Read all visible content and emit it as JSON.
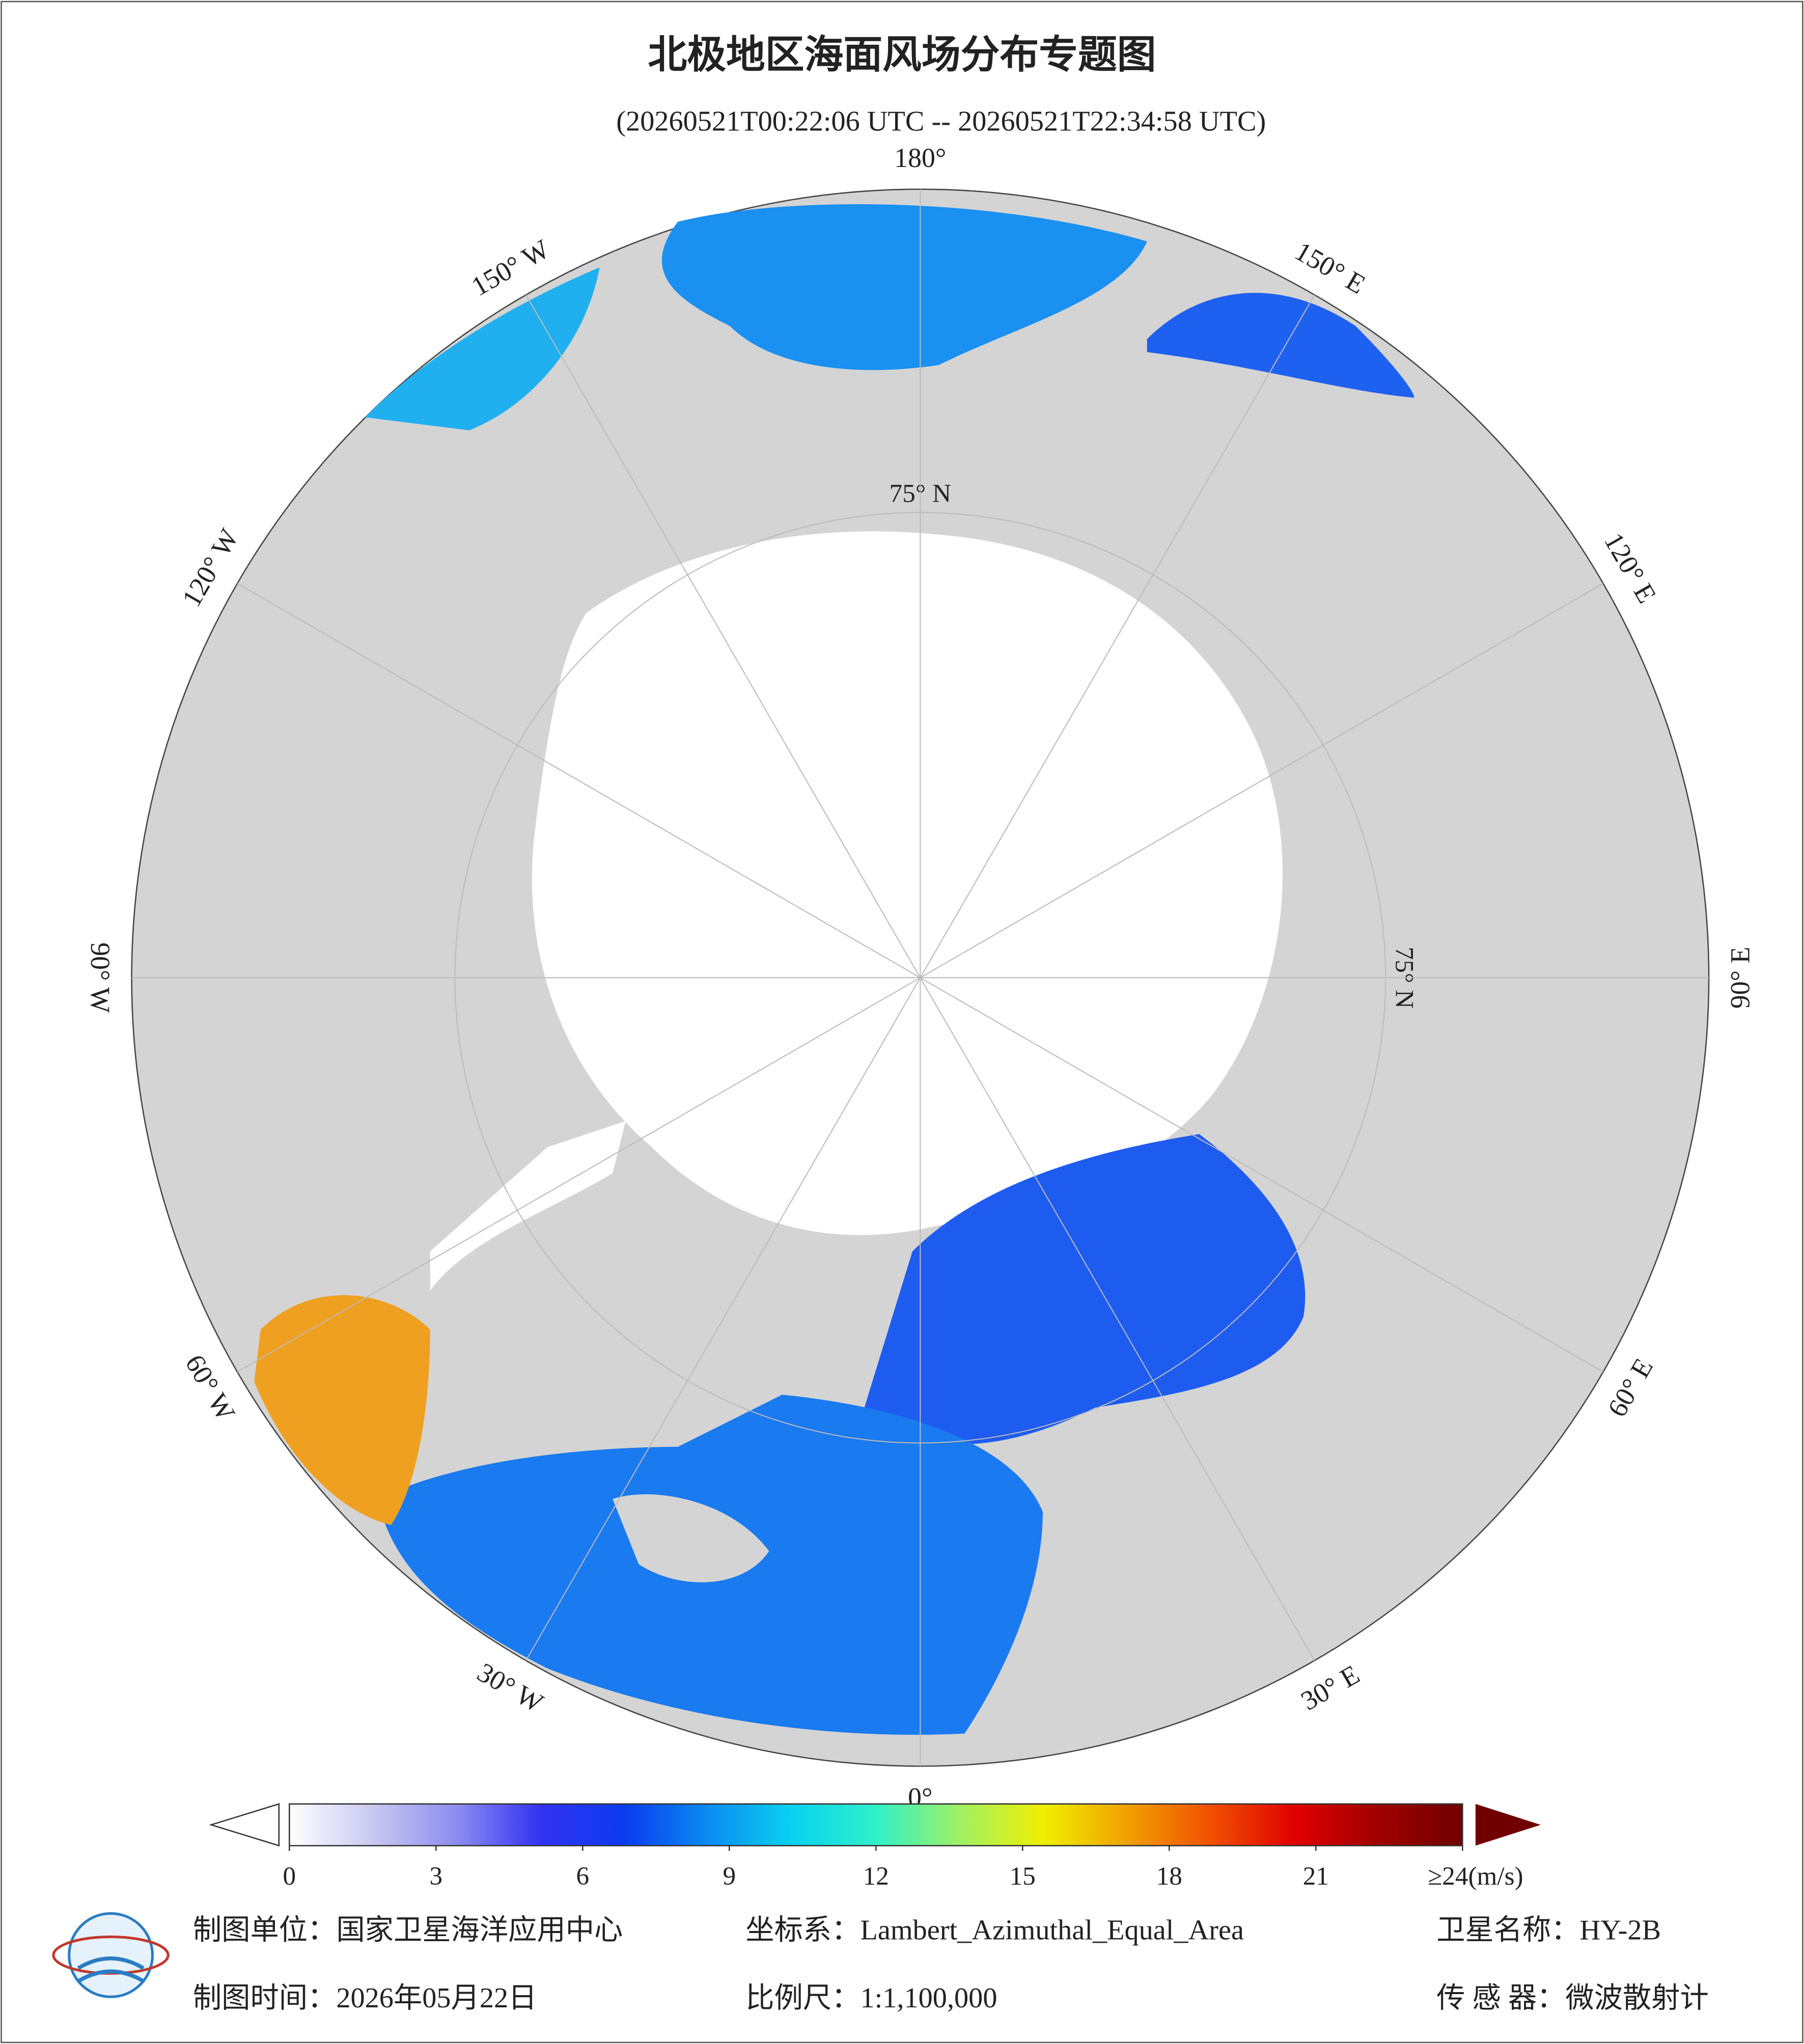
{
  "header": {
    "title": "北极地区海面风场分布专题图",
    "subtitle": "(20260521T00:22:06 UTC -- 20260521T22:34:58 UTC)"
  },
  "map": {
    "meridians": [
      {
        "value": 180,
        "label": "180°"
      },
      {
        "value": 150,
        "label": "150° E"
      },
      {
        "value": 120,
        "label": "120° E"
      },
      {
        "value": 90,
        "label": "90° E"
      },
      {
        "value": 60,
        "label": "60° E"
      },
      {
        "value": 30,
        "label": "30° E"
      },
      {
        "value": 0,
        "label": "0°"
      },
      {
        "value": -30,
        "label": "30° W"
      },
      {
        "value": -60,
        "label": "60° W"
      },
      {
        "value": -90,
        "label": "90° W"
      },
      {
        "value": -120,
        "label": "120° W"
      },
      {
        "value": -150,
        "label": "150° W"
      }
    ],
    "parallels": [
      {
        "value": 75,
        "label": "75° N"
      }
    ]
  },
  "colorbar": {
    "range": [
      0,
      24
    ],
    "ticks": [
      0,
      3,
      6,
      9,
      12,
      15,
      18,
      21,
      {
        "value": 24,
        "label": "≥24(m/s)"
      }
    ],
    "colors": [
      "#ffffff",
      "#c8c8f0",
      "#8c8cf0",
      "#3232f0",
      "#0a3cf0",
      "#0a8cf0",
      "#0ad2f0",
      "#30f0c8",
      "#a0f064",
      "#f0f000",
      "#f0a000",
      "#f05000",
      "#e00000",
      "#a00000",
      "#700000"
    ]
  },
  "footer": {
    "unit": "制图单位：国家卫星海洋应用中心",
    "crs": "坐标系：Lambert_Azimuthal_Equal_Area",
    "satellite": "卫星名称：HY-2B",
    "date": "制图时间：2026年05月22日",
    "scale": "比例尺：1:1,100,000",
    "sensor": "传 感 器：微波散射计"
  }
}
